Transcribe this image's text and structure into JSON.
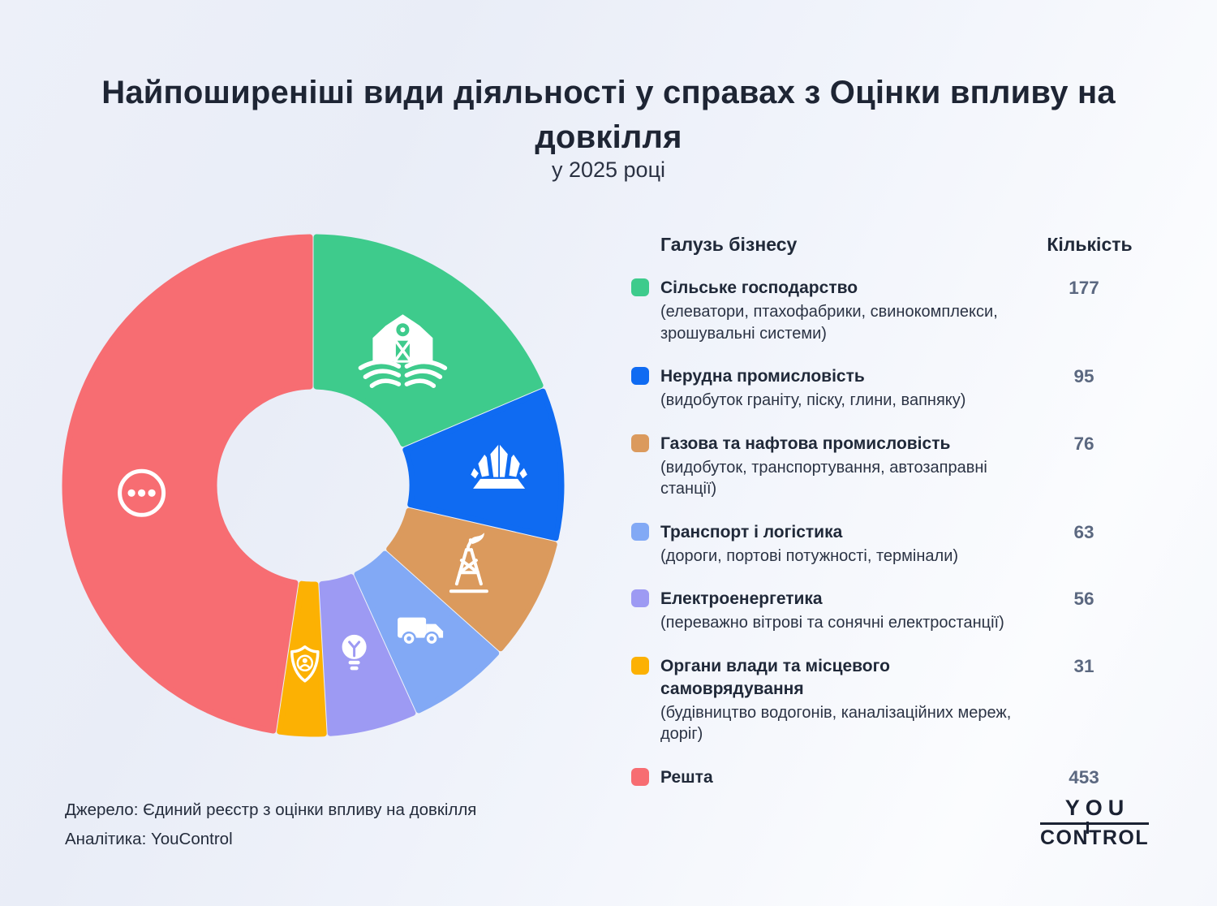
{
  "header": {
    "title": "Найпоширеніші види діяльності у справах з Оцінки впливу на довкілля",
    "subtitle": "у 2025 році"
  },
  "legend": {
    "column_industry": "Галузь бізнесу",
    "column_count": "Кількість"
  },
  "chart_data": {
    "type": "pie",
    "donut": true,
    "title": "Найпоширеніші види діяльності у справах з Оцінки впливу на довкілля",
    "subtitle": "у 2025 році",
    "start_angle_deg": 0,
    "direction": "clockwise",
    "legend_position": "right",
    "series": [
      {
        "label": "Сільське господарство",
        "desc": "(елеватори, птахофабрики, свинокомплекси, зрошувальні системи)",
        "value": 177,
        "color": "#3ecb8c",
        "icon": "farm-icon"
      },
      {
        "label": "Нерудна промисловість",
        "desc": "(видобуток граніту, піску, глини, вапняку)",
        "value": 95,
        "color": "#0f6bf2",
        "icon": "minerals-icon"
      },
      {
        "label": "Газова та нафтова промисловість",
        "desc": "(видобуток, транспортування, автозаправні станції)",
        "value": 76,
        "color": "#db9a5d",
        "icon": "oil-derrick-icon"
      },
      {
        "label": "Транспорт і логістика",
        "desc": "(дороги, портові потужності, термінали)",
        "value": 63,
        "color": "#82a9f5",
        "icon": "truck-icon"
      },
      {
        "label": "Електроенергетика",
        "desc": "(переважно вітрові та сонячні електростанції)",
        "value": 56,
        "color": "#9d9af3",
        "icon": "lightbulb-icon"
      },
      {
        "label": "Органи влади та місцевого самоврядування",
        "desc": "(будівництво водогонів, каналізаційних мереж, доріг)",
        "value": 31,
        "color": "#fcb103",
        "icon": "shield-person-icon"
      },
      {
        "label": "Решта",
        "desc": "",
        "value": 453,
        "color": "#f76d72",
        "icon": "more-icon"
      }
    ]
  },
  "footer": {
    "source": "Джерело: Єдиний реєстр з оцінки впливу на довкілля",
    "analytics": "Аналітика: YouControl"
  },
  "logo": {
    "you": "YOU",
    "control": "CONTROL",
    "color": "#1b2233"
  }
}
